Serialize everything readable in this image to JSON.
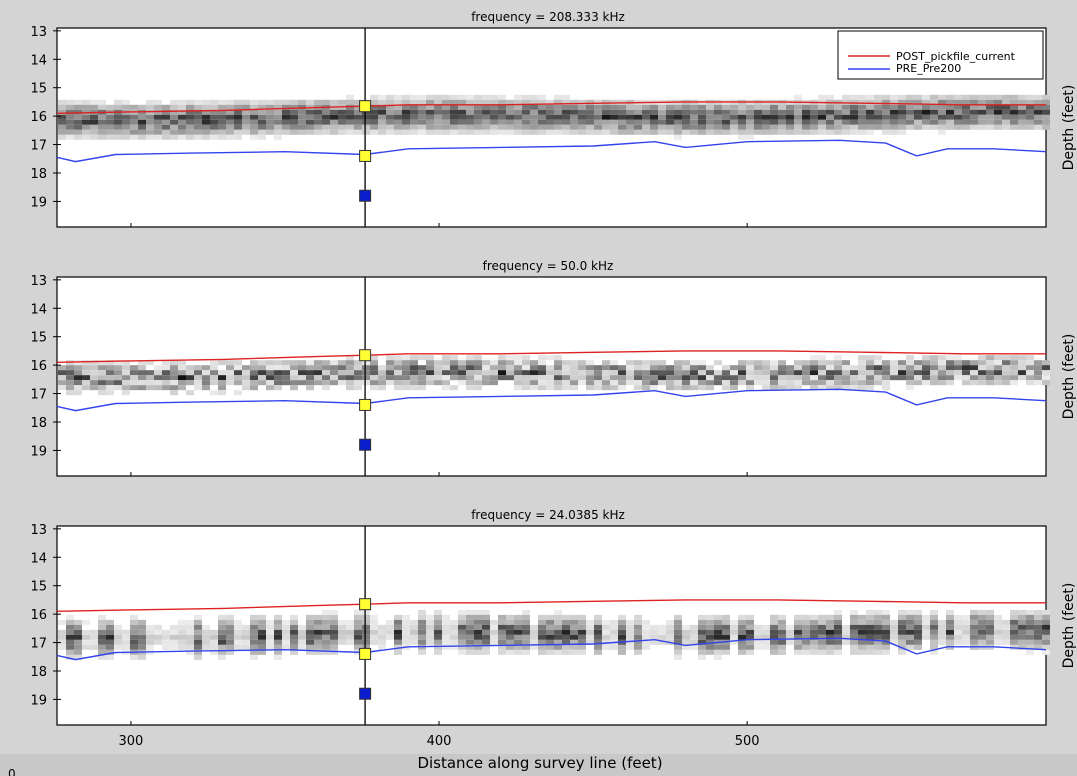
{
  "figure": {
    "xlabel": "Distance along survey line (feet)",
    "ylabel": "Depth (feet)",
    "corner_text": "0"
  },
  "colors": {
    "post_line": "#dd2222",
    "pre_line": "#3344ee",
    "marker_yellow": "#ffff33",
    "marker_blue": "#0a1ed0",
    "cursor": "#000000",
    "background": "#d4d4d4"
  },
  "chart_data": [
    {
      "type": "line",
      "title": "frequency = 208.333 kHz",
      "xlabel": "",
      "ylabel": "Depth (feet)",
      "xlim": [
        276,
        597
      ],
      "ylim": [
        19.9,
        12.9
      ],
      "y_inverted": true,
      "xticks": [
        300,
        400,
        500
      ],
      "yticks": [
        13,
        14,
        15,
        16,
        17,
        18,
        19
      ],
      "grid": false,
      "legend_position": "top-right",
      "band": {
        "center": 16.0,
        "halfwidth": 0.45,
        "pattern": "continuous"
      },
      "series": [
        {
          "name": "POST_pickfile_current",
          "color": "#dd2222",
          "x": [
            276,
            300,
            330,
            360,
            376,
            390,
            420,
            450,
            480,
            510,
            540,
            570,
            597
          ],
          "y": [
            15.9,
            15.85,
            15.8,
            15.7,
            15.65,
            15.6,
            15.6,
            15.55,
            15.5,
            15.5,
            15.55,
            15.6,
            15.6
          ]
        },
        {
          "name": "PRE_Pre200",
          "color": "#3344ee",
          "x": [
            276,
            282,
            295,
            320,
            350,
            376,
            390,
            420,
            450,
            470,
            480,
            500,
            530,
            545,
            555,
            565,
            580,
            597
          ],
          "y": [
            17.45,
            17.6,
            17.35,
            17.3,
            17.25,
            17.35,
            17.15,
            17.1,
            17.05,
            16.9,
            17.1,
            16.9,
            16.85,
            16.95,
            17.4,
            17.15,
            17.15,
            17.25
          ]
        }
      ],
      "markers": [
        {
          "x": 376,
          "y": 15.65,
          "color": "yellow"
        },
        {
          "x": 376,
          "y": 17.4,
          "color": "yellow"
        },
        {
          "x": 376,
          "y": 18.8,
          "color": "blue"
        }
      ],
      "cursor_x": 376
    },
    {
      "type": "line",
      "title": "frequency = 50.0 kHz",
      "xlabel": "",
      "ylabel": "Depth (feet)",
      "xlim": [
        276,
        597
      ],
      "ylim": [
        19.9,
        12.9
      ],
      "y_inverted": true,
      "xticks": [
        300,
        400,
        500
      ],
      "yticks": [
        13,
        14,
        15,
        16,
        17,
        18,
        19
      ],
      "grid": false,
      "band": {
        "center": 16.3,
        "halfwidth": 0.35,
        "pattern": "speckled"
      },
      "series": [
        {
          "name": "POST_pickfile_current",
          "color": "#dd2222",
          "x": [
            276,
            300,
            330,
            360,
            376,
            390,
            420,
            450,
            480,
            510,
            540,
            570,
            597
          ],
          "y": [
            15.9,
            15.85,
            15.8,
            15.7,
            15.65,
            15.6,
            15.6,
            15.55,
            15.5,
            15.5,
            15.55,
            15.6,
            15.6
          ]
        },
        {
          "name": "PRE_Pre200",
          "color": "#3344ee",
          "x": [
            276,
            282,
            295,
            320,
            350,
            376,
            390,
            420,
            450,
            470,
            480,
            500,
            530,
            545,
            555,
            565,
            580,
            597
          ],
          "y": [
            17.45,
            17.6,
            17.35,
            17.3,
            17.25,
            17.35,
            17.15,
            17.1,
            17.05,
            16.9,
            17.1,
            16.9,
            16.85,
            16.95,
            17.4,
            17.15,
            17.15,
            17.25
          ]
        }
      ],
      "markers": [
        {
          "x": 376,
          "y": 15.65,
          "color": "yellow"
        },
        {
          "x": 376,
          "y": 17.4,
          "color": "yellow"
        },
        {
          "x": 376,
          "y": 18.8,
          "color": "blue"
        }
      ],
      "cursor_x": 376
    },
    {
      "type": "line",
      "title": "frequency = 24.0385 kHz",
      "xlabel": "Distance along survey line (feet)",
      "ylabel": "Depth (feet)",
      "xlim": [
        276,
        597
      ],
      "ylim": [
        19.9,
        12.9
      ],
      "y_inverted": true,
      "xticks": [
        300,
        400,
        500
      ],
      "yticks": [
        13,
        14,
        15,
        16,
        17,
        18,
        19
      ],
      "grid": false,
      "band": {
        "center": 16.7,
        "halfwidth": 0.55,
        "pattern": "columns"
      },
      "series": [
        {
          "name": "POST_pickfile_current",
          "color": "#dd2222",
          "x": [
            276,
            300,
            330,
            360,
            376,
            390,
            420,
            450,
            480,
            510,
            540,
            570,
            597
          ],
          "y": [
            15.9,
            15.85,
            15.8,
            15.7,
            15.65,
            15.6,
            15.6,
            15.55,
            15.5,
            15.5,
            15.55,
            15.6,
            15.6
          ]
        },
        {
          "name": "PRE_Pre200",
          "color": "#3344ee",
          "x": [
            276,
            282,
            295,
            320,
            350,
            376,
            390,
            420,
            450,
            470,
            480,
            500,
            530,
            545,
            555,
            565,
            580,
            597
          ],
          "y": [
            17.45,
            17.6,
            17.35,
            17.3,
            17.25,
            17.35,
            17.15,
            17.1,
            17.05,
            16.9,
            17.1,
            16.9,
            16.85,
            16.95,
            17.4,
            17.15,
            17.15,
            17.25
          ]
        }
      ],
      "markers": [
        {
          "x": 376,
          "y": 15.65,
          "color": "yellow"
        },
        {
          "x": 376,
          "y": 17.4,
          "color": "yellow"
        },
        {
          "x": 376,
          "y": 18.8,
          "color": "blue"
        }
      ],
      "cursor_x": 376
    }
  ]
}
